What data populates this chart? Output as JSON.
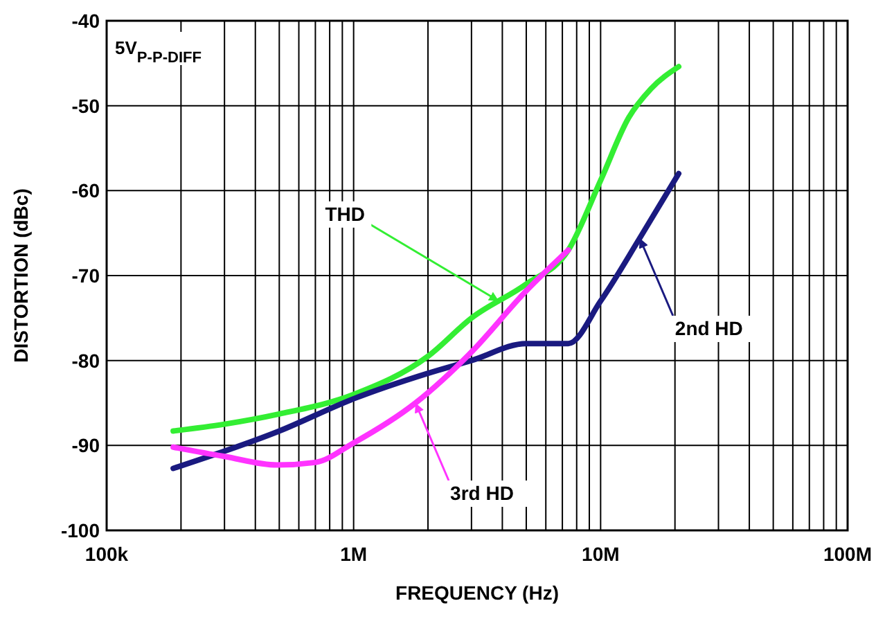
{
  "chart_data": {
    "type": "line",
    "xlabel": "FREQUENCY (Hz)",
    "ylabel": "DISTORTION (dBc)",
    "log": "x",
    "grid": true,
    "marker": "none",
    "line_style": "solid",
    "xlim": [
      100000,
      100000000
    ],
    "xticks": [
      {
        "value": 100000,
        "label": "100k"
      },
      {
        "value": 1000000,
        "label": "1M"
      },
      {
        "value": 10000000,
        "label": "10M"
      },
      {
        "value": 100000000,
        "label": "100M"
      }
    ],
    "ylim": [
      -100,
      -40
    ],
    "yticks": [
      -100,
      -90,
      -80,
      -70,
      -60,
      -50,
      -40
    ],
    "series": [
      {
        "color": "#33ee33",
        "x": [
          186000,
          300000,
          500000,
          1000000,
          2000000,
          3000000,
          5000000,
          7400000,
          10000000,
          13000000,
          16000000,
          20700000
        ],
        "values": [
          -88.3,
          -87.5,
          -86.3,
          -84,
          -79.5,
          -75,
          -71,
          -67,
          -58.8,
          -51.4,
          -48,
          -45.4
        ]
      },
      {
        "color": "#1a1a80",
        "x": [
          186000,
          500000,
          1000000,
          2000000,
          3000000,
          5000000,
          7400000,
          10000000,
          14400000,
          20700000
        ],
        "values": [
          -92.7,
          -88.3,
          -84.5,
          -81.5,
          -80,
          -78,
          -78,
          -73,
          -65.6,
          -58
        ]
      },
      {
        "color": "#ff33ff",
        "x": [
          186000,
          300000,
          490000,
          700000,
          1000000,
          1780000,
          3000000,
          5000000,
          7400000
        ],
        "values": [
          -90.2,
          -91.3,
          -92.3,
          -92,
          -89.7,
          -85,
          -79,
          -71.8,
          -67
        ]
      }
    ],
    "annotations": [
      "5V$_{P-P-DIFF}$",
      {
        "text": "THD",
        "x": 3870000,
        "y": -73
      },
      {
        "text": "2nd HD",
        "x": 14400000,
        "y": -65.6
      },
      {
        "text": "3rd HD",
        "x": 1780000,
        "y": -85
      }
    ]
  }
}
